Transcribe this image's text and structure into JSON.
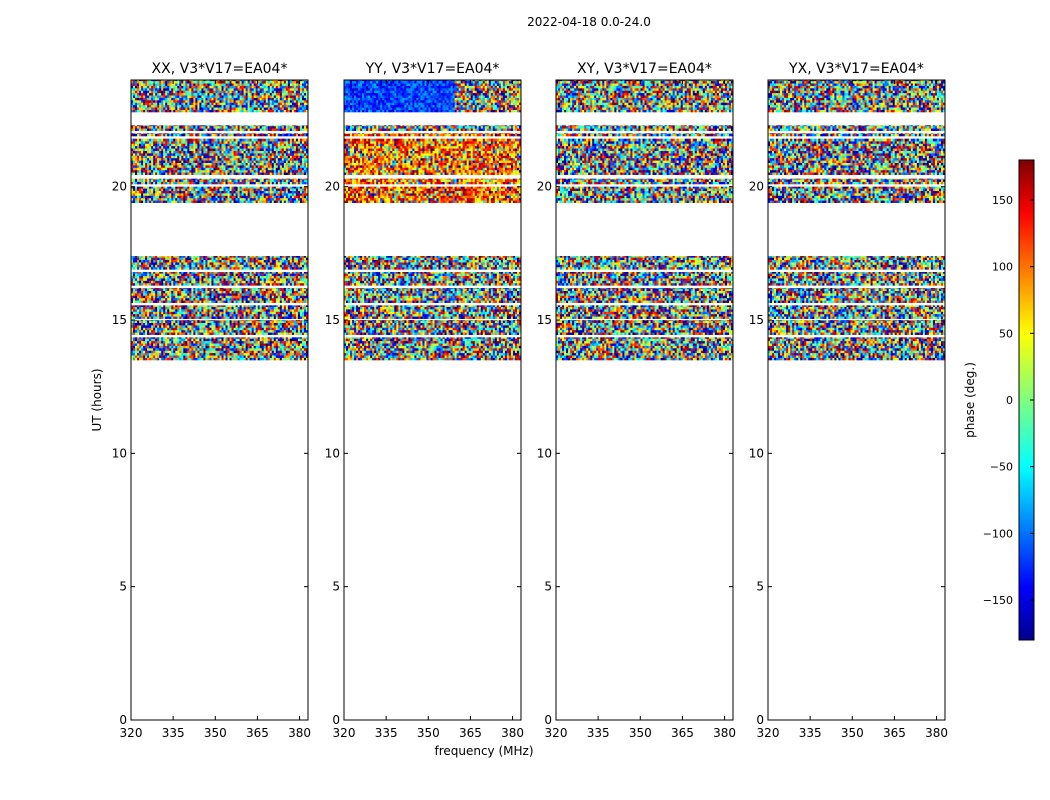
{
  "chart_data": {
    "type": "heatmap",
    "title": "2022-04-18 0.0-24.0",
    "xlabel": "frequency (MHz)",
    "ylabel": "UT (hours)",
    "xlim": [
      320,
      383
    ],
    "ylim": [
      0,
      24
    ],
    "x_ticks": [
      320,
      335,
      350,
      365,
      380
    ],
    "y_ticks": [
      0,
      5,
      10,
      15,
      20
    ],
    "data_bands_hours": [
      [
        13.5,
        14.35
      ],
      [
        14.45,
        15.0
      ],
      [
        15.05,
        15.55
      ],
      [
        15.65,
        16.2
      ],
      [
        16.3,
        16.8
      ],
      [
        16.9,
        17.4
      ],
      [
        19.4,
        20.0
      ],
      [
        20.1,
        20.3
      ],
      [
        20.45,
        21.8
      ],
      [
        21.9,
        22.0
      ],
      [
        22.1,
        22.3
      ],
      [
        22.8,
        24.0
      ]
    ],
    "panels": [
      {
        "title": "XX, V3*V17=EA04*",
        "bias": "uniform"
      },
      {
        "title": "YY, V3*V17=EA04*",
        "bias": "yy"
      },
      {
        "title": "XY, V3*V17=EA04*",
        "bias": "uniform"
      },
      {
        "title": "YX, V3*V17=EA04*",
        "bias": "uniform"
      }
    ],
    "colorbar": {
      "label": "phase (deg.)",
      "range": [
        -180,
        180
      ],
      "ticks": [
        150,
        100,
        50,
        0,
        -50,
        -100,
        -150
      ],
      "tick_labels": [
        "150",
        "100",
        "50",
        "0",
        "−50",
        "−100",
        "−150"
      ],
      "colormap": "jet"
    }
  }
}
